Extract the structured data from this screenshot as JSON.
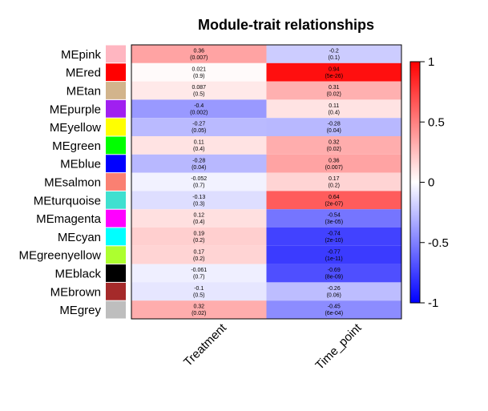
{
  "chart_data": {
    "type": "heatmap",
    "title": "Module-trait relationships",
    "columns": [
      "Treatment",
      "Time_point"
    ],
    "rows": [
      {
        "label": "MEpink",
        "swatch": "#FFB6C1",
        "cells": [
          {
            "v": "0.36",
            "p": "(0.007)",
            "value": 0.36
          },
          {
            "v": "-0.2",
            "p": "(0.1)",
            "value": -0.2
          }
        ]
      },
      {
        "label": "MEred",
        "swatch": "#FF0000",
        "cells": [
          {
            "v": "0.021",
            "p": "(0.9)",
            "value": 0.021
          },
          {
            "v": "0.94",
            "p": "(5e-26)",
            "value": 0.94
          }
        ]
      },
      {
        "label": "MEtan",
        "swatch": "#D2B48C",
        "cells": [
          {
            "v": "0.087",
            "p": "(0.5)",
            "value": 0.087
          },
          {
            "v": "0.31",
            "p": "(0.02)",
            "value": 0.31
          }
        ]
      },
      {
        "label": "MEpurple",
        "swatch": "#A020F0",
        "cells": [
          {
            "v": "-0.4",
            "p": "(0.002)",
            "value": -0.4
          },
          {
            "v": "0.11",
            "p": "(0.4)",
            "value": 0.11
          }
        ]
      },
      {
        "label": "MEyellow",
        "swatch": "#FFFF00",
        "cells": [
          {
            "v": "-0.27",
            "p": "(0.05)",
            "value": -0.27
          },
          {
            "v": "-0.28",
            "p": "(0.04)",
            "value": -0.28
          }
        ]
      },
      {
        "label": "MEgreen",
        "swatch": "#00FF00",
        "cells": [
          {
            "v": "0.11",
            "p": "(0.4)",
            "value": 0.11
          },
          {
            "v": "0.32",
            "p": "(0.02)",
            "value": 0.32
          }
        ]
      },
      {
        "label": "MEblue",
        "swatch": "#0000FF",
        "cells": [
          {
            "v": "-0.28",
            "p": "(0.04)",
            "value": -0.28
          },
          {
            "v": "0.36",
            "p": "(0.007)",
            "value": 0.36
          }
        ]
      },
      {
        "label": "MEsalmon",
        "swatch": "#FA8072",
        "cells": [
          {
            "v": "-0.052",
            "p": "(0.7)",
            "value": -0.052
          },
          {
            "v": "0.17",
            "p": "(0.2)",
            "value": 0.17
          }
        ]
      },
      {
        "label": "MEturquoise",
        "swatch": "#40E0D0",
        "cells": [
          {
            "v": "-0.13",
            "p": "(0.3)",
            "value": -0.13
          },
          {
            "v": "0.64",
            "p": "(2e-07)",
            "value": 0.64
          }
        ]
      },
      {
        "label": "MEmagenta",
        "swatch": "#FF00FF",
        "cells": [
          {
            "v": "0.12",
            "p": "(0.4)",
            "value": 0.12
          },
          {
            "v": "-0.54",
            "p": "(3e-05)",
            "value": -0.54
          }
        ]
      },
      {
        "label": "MEcyan",
        "swatch": "#00FFFF",
        "cells": [
          {
            "v": "0.19",
            "p": "(0.2)",
            "value": 0.19
          },
          {
            "v": "-0.74",
            "p": "(2e-10)",
            "value": -0.74
          }
        ]
      },
      {
        "label": "MEgreenyellow",
        "swatch": "#ADFF2F",
        "cells": [
          {
            "v": "0.17",
            "p": "(0.2)",
            "value": 0.17
          },
          {
            "v": "-0.77",
            "p": "(1e-11)",
            "value": -0.77
          }
        ]
      },
      {
        "label": "MEblack",
        "swatch": "#000000",
        "cells": [
          {
            "v": "-0.061",
            "p": "(0.7)",
            "value": -0.061
          },
          {
            "v": "-0.69",
            "p": "(8e-09)",
            "value": -0.69
          }
        ]
      },
      {
        "label": "MEbrown",
        "swatch": "#A52A2A",
        "cells": [
          {
            "v": "-0.1",
            "p": "(0.5)",
            "value": -0.1
          },
          {
            "v": "-0.26",
            "p": "(0.06)",
            "value": -0.26
          }
        ]
      },
      {
        "label": "MEgrey",
        "swatch": "#BEBEBE",
        "cells": [
          {
            "v": "0.32",
            "p": "(0.02)",
            "value": 0.32
          },
          {
            "v": "-0.45",
            "p": "(6e-04)",
            "value": -0.45
          }
        ]
      }
    ],
    "colorbar": {
      "range": [
        -1,
        1
      ],
      "ticks": [
        {
          "value": 1,
          "label": "1"
        },
        {
          "value": 0.5,
          "label": "0.5"
        },
        {
          "value": 0,
          "label": "0"
        },
        {
          "value": -0.5,
          "label": "-0.5"
        },
        {
          "value": -1,
          "label": "-1"
        }
      ],
      "low_color": "#0000FF",
      "mid_color": "#FFFFFF",
      "high_color": "#FF0000"
    }
  }
}
